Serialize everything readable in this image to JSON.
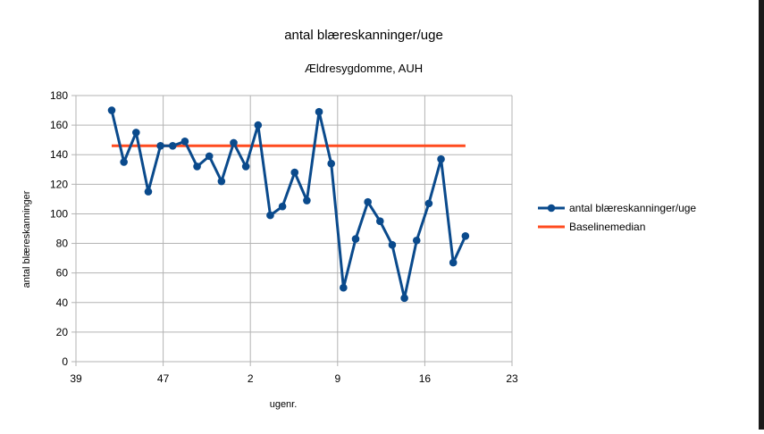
{
  "chart_data": {
    "type": "line",
    "title": "antal blæreskanninger/uge",
    "subtitle": "Ældresygdomme, AUH",
    "xlabel": "ugenr.",
    "ylabel": "antal blæreskanninger",
    "ylim": [
      0,
      180
    ],
    "yticks": [
      0,
      20,
      40,
      60,
      80,
      100,
      120,
      140,
      160,
      180
    ],
    "x_tick_labels": [
      "39",
      "47",
      "2",
      "9",
      "16",
      "23"
    ],
    "grid": true,
    "legend_position": "right",
    "series": [
      {
        "name": "antal blæreskanninger/uge",
        "color": "#0a4a8c",
        "marker": "circle",
        "values": [
          170,
          135,
          155,
          115,
          146,
          146,
          149,
          132,
          139,
          122,
          148,
          132,
          160,
          99,
          105,
          128,
          109,
          169,
          134,
          50,
          83,
          108,
          95,
          79,
          43,
          82,
          107,
          137,
          67,
          85
        ]
      },
      {
        "name": "Baselinemedian",
        "color": "#ff4b1f",
        "marker": "none",
        "values": [
          146,
          146,
          146,
          146,
          146,
          146,
          146,
          146,
          146,
          146,
          146,
          146,
          146,
          146,
          146,
          146,
          146,
          146,
          146,
          146,
          146,
          146,
          146,
          146,
          146,
          146,
          146,
          146,
          146,
          146
        ]
      }
    ]
  }
}
